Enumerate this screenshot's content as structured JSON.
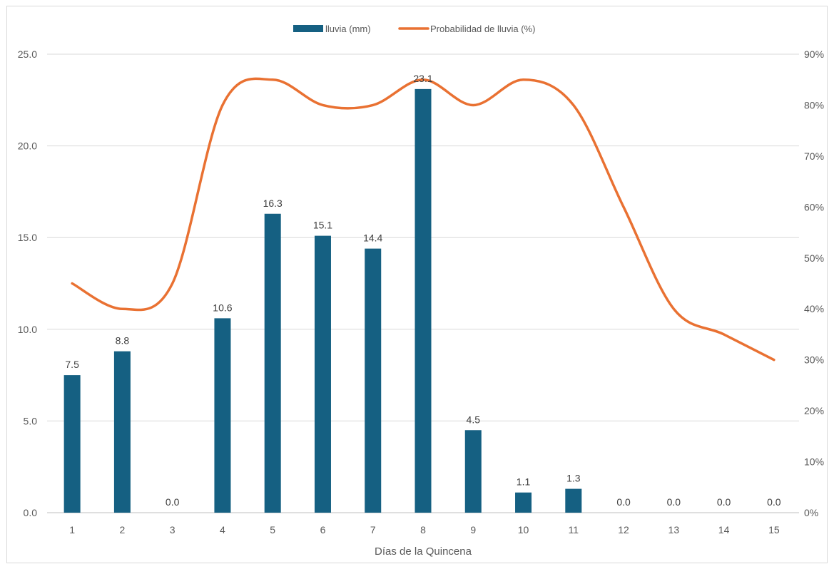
{
  "chart_data": {
    "type": "bar",
    "title": "",
    "xlabel": "Días de la Quincena",
    "ylabel": "",
    "y2label": "",
    "categories": [
      "1",
      "2",
      "3",
      "4",
      "5",
      "6",
      "7",
      "8",
      "9",
      "10",
      "11",
      "12",
      "13",
      "14",
      "15"
    ],
    "series": [
      {
        "name": "lluvia (mm)",
        "type": "bar",
        "axis": "left",
        "color": "#156082",
        "values": [
          7.5,
          8.8,
          0.0,
          10.6,
          16.3,
          15.1,
          14.4,
          23.1,
          4.5,
          1.1,
          1.3,
          0.0,
          0.0,
          0.0,
          0.0
        ],
        "labels": [
          "7.5",
          "8.8",
          "0.0",
          "10.6",
          "16.3",
          "15.1",
          "14.4",
          "23.1",
          "4.5",
          "1.1",
          "1.3",
          "0.0",
          "0.0",
          "0.0",
          "0.0"
        ]
      },
      {
        "name": "Probabilidad de lluvia (%)",
        "type": "line",
        "axis": "right",
        "color": "#E97132",
        "smooth": true,
        "values": [
          45,
          40,
          45,
          80,
          85,
          80,
          80,
          85,
          80,
          85,
          80,
          60,
          40,
          35,
          30
        ]
      }
    ],
    "ylim": [
      0,
      25
    ],
    "yticks": [
      "0.0",
      "5.0",
      "10.0",
      "15.0",
      "20.0",
      "25.0"
    ],
    "y2lim": [
      0,
      90
    ],
    "y2ticks": [
      "0%",
      "10%",
      "20%",
      "30%",
      "40%",
      "50%",
      "60%",
      "70%",
      "80%",
      "90%"
    ],
    "grid": true,
    "legend_position": "top-center"
  }
}
